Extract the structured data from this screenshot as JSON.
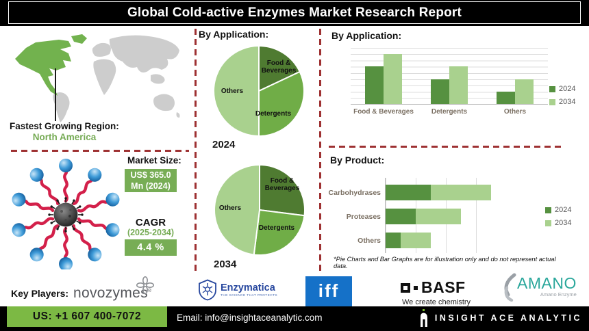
{
  "title": "Global Cold-active Enzymes Market Research Report",
  "colors": {
    "pie_dark_green": "#4F7B31",
    "pie_mid_green": "#70AD47",
    "pie_light_green": "#A9D18E",
    "bar_2024_green": "#569140",
    "bar_2034_green": "#A9D18E",
    "accent_box_green": "#77AD55",
    "footer_green": "#7CB944",
    "dashed_divider_red": "#9E3132",
    "map_highlight_green": "#72B24E",
    "map_gray": "#CDCDCD",
    "enzyme_squiggle_red": "#D3204A",
    "enzyme_ball_blue": "#3F9BD8",
    "iff_blue": "#1571C8",
    "enzymatica_blue": "#27479E",
    "amano_teal": "#2AA79B"
  },
  "map_section": {
    "caption_label": "Fastest Growing Region:",
    "caption_value": "North America"
  },
  "market_section": {
    "market_size_label": "Market Size:",
    "market_size_line1": "US$ 365.0",
    "market_size_line2": "Mn (2024)",
    "cagr_label": "CAGR",
    "cagr_period": "(2025-2034)",
    "cagr_value": "4.4 %"
  },
  "pie_section": {
    "heading": "By Application:"
  },
  "by_application_chart": {
    "heading": "By Application:",
    "legend_position": "right"
  },
  "by_product_chart": {
    "heading": "By Product:",
    "legend_position": "right",
    "footnote": "*Pie Charts and Bar Graphs are for illustration only and do not represent actual data."
  },
  "chart_data": [
    {
      "id": "pie-2024",
      "type": "pie",
      "title": "By Application:",
      "year_label": "2024",
      "labels": [
        "Food & Beverages",
        "Detergents",
        "Others"
      ],
      "values": [
        18,
        32,
        50
      ],
      "colors": [
        "#4F7B31",
        "#70AD47",
        "#A9D18E"
      ],
      "note": "illustrative percentages estimated from slice angles"
    },
    {
      "id": "pie-2034",
      "type": "pie",
      "title": "By Application:",
      "year_label": "2034",
      "labels": [
        "Food & Beverages",
        "Detergents",
        "Others"
      ],
      "values": [
        27,
        25,
        48
      ],
      "colors": [
        "#4F7B31",
        "#70AD47",
        "#A9D18E"
      ],
      "note": "illustrative percentages estimated from slice angles"
    },
    {
      "id": "bar-application",
      "type": "bar",
      "title": "By Application:",
      "categories": [
        "Food & Beverages",
        "Detergents",
        "Others"
      ],
      "series": [
        {
          "name": "2024",
          "color": "#569140",
          "values": [
            6,
            4,
            2
          ]
        },
        {
          "name": "2034",
          "color": "#A9D18E",
          "values": [
            8,
            6,
            4
          ]
        }
      ],
      "ymax": 9,
      "gridlines": 9,
      "yaxis_labels": "none shown",
      "note": "illustrative relative heights, no axis values shown"
    },
    {
      "id": "bar-product",
      "type": "stacked-bar-horizontal",
      "title": "By Product:",
      "categories": [
        "Carbohydrases",
        "Proteases",
        "Others"
      ],
      "series": [
        {
          "name": "2024",
          "color": "#569140",
          "values": [
            1.5,
            1,
            0.5
          ]
        },
        {
          "name": "2034",
          "color": "#A9D18E",
          "values": [
            2,
            1.5,
            1
          ]
        }
      ],
      "xmax": 4,
      "gridline_step": 1,
      "xaxis_labels": "none shown",
      "note": "illustrative relative widths, no axis values shown"
    }
  ],
  "key_players": {
    "label": "Key Players:",
    "novozymes_name": "novozymes",
    "novozymes_reg": "®",
    "enzymatica_name": "Enzymatica",
    "enzymatica_tagline": "THE SCIENCE THAT PROTECTS",
    "iff_name": "iff",
    "basf_name": "BASF",
    "basf_tagline": "We create chemistry",
    "amano_name": "AMANO",
    "amano_sub": "Amano Enzyme"
  },
  "footer": {
    "phone": "US: +1 607 400-7072",
    "email": "Email: info@insightaceanalytic.com",
    "brand": "INSIGHT ACE ANALYTIC"
  }
}
